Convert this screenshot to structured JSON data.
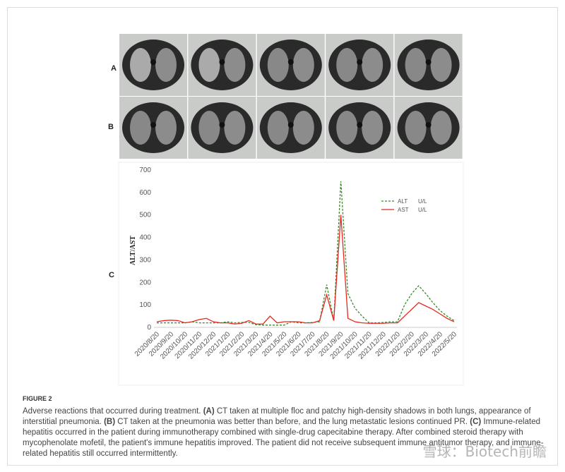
{
  "figure": {
    "panel_labels": [
      "A",
      "B",
      "C"
    ]
  },
  "chart_data": {
    "type": "line",
    "y_label": "ALT/AST",
    "legend_unit": "U/L",
    "categories": [
      "2020/8/20",
      null,
      "2020/9/20",
      null,
      "2020/10/20",
      null,
      "2020/11/20",
      null,
      "2020/12/20",
      null,
      "2021/1/20",
      null,
      "2021/2/20",
      null,
      "2021/3/20",
      null,
      "2021/4/20",
      null,
      "2021/5/20",
      null,
      "2021/6/20",
      null,
      "2021/7/20",
      null,
      "2021/8/20",
      null,
      "2021/9/20",
      null,
      "2021/10/20",
      null,
      "2021/11/20",
      null,
      "2021/12/20",
      null,
      "2022/1/20",
      null,
      "2022/2/20",
      null,
      "2022/3/20",
      null,
      "2022/4/20",
      null,
      "2022/5/20"
    ],
    "series": [
      {
        "name": "ALT",
        "color": "#3a8a2a",
        "dashed": true,
        "values": [
          20,
          20,
          20,
          20,
          20,
          25,
          20,
          20,
          20,
          20,
          25,
          20,
          22,
          22,
          12,
          10,
          10,
          10,
          10,
          25,
          20,
          20,
          22,
          25,
          190,
          30,
          650,
          150,
          85,
          50,
          20,
          20,
          22,
          25,
          25,
          100,
          150,
          185,
          150,
          110,
          75,
          50,
          30
        ]
      },
      {
        "name": "AST",
        "color": "#e8281e",
        "dashed": false,
        "values": [
          25,
          30,
          32,
          30,
          20,
          25,
          35,
          40,
          25,
          20,
          20,
          15,
          18,
          30,
          15,
          15,
          50,
          20,
          25,
          25,
          25,
          20,
          20,
          30,
          145,
          30,
          500,
          40,
          25,
          20,
          18,
          18,
          18,
          20,
          20,
          50,
          80,
          110,
          95,
          80,
          60,
          40,
          25
        ]
      }
    ],
    "ylim": [
      0,
      700
    ],
    "yticks": [
      0,
      100,
      200,
      300,
      400,
      500,
      600,
      700
    ]
  },
  "caption": {
    "label": "FIGURE 2",
    "parts": [
      "Adverse reactions that occurred during treatment. ",
      "(A)",
      " CT taken at multiple floc and patchy high-density shadows in both lungs, appearance of interstitial pneumonia. ",
      "(B)",
      " CT taken at the pneumonia was better than before, and the lung metastatic lesions continued PR. ",
      "(C)",
      " Immune-related hepatitis occurred in the patient during immunotherapy combined with single-drug capecitabine therapy. After combined steroid therapy with mycophenolate mofetil, the patient's immune hepatitis improved. The patient did not receive subsequent immune antitumor therapy, and immune-related hepatitis still occurred intermittently."
    ]
  },
  "watermark": "雪球：Biotech前瞻"
}
